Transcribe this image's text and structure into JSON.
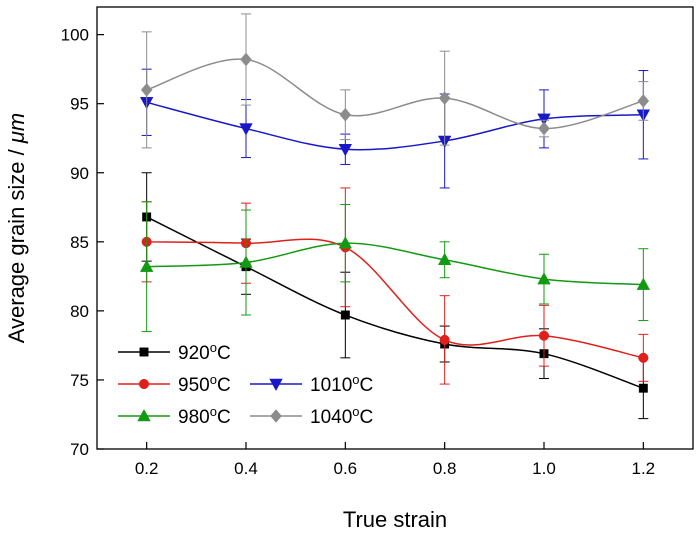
{
  "chart_data": {
    "type": "line",
    "title": "",
    "xlabel": "True strain",
    "ylabel_prefix": "Average grain size / ",
    "ylabel_unit": "μm",
    "xlim": [
      0.1,
      1.3
    ],
    "ylim": [
      70,
      102
    ],
    "xticks": [
      0.2,
      0.4,
      0.6,
      0.8,
      1.0,
      1.2
    ],
    "xtick_labels": [
      "0.2",
      "0.4",
      "0.6",
      "0.8",
      "1.0",
      "1.2"
    ],
    "yticks": [
      70,
      75,
      80,
      85,
      90,
      95,
      100
    ],
    "ytick_labels": [
      "70",
      "75",
      "80",
      "85",
      "90",
      "95",
      "100"
    ],
    "grid": false,
    "legend_position": "bottom-left",
    "series": [
      {
        "name": "920",
        "unit": "°C",
        "color": "#000000",
        "marker": "square",
        "x": [
          0.2,
          0.4,
          0.6,
          0.8,
          1.0,
          1.2
        ],
        "values": [
          86.8,
          83.2,
          79.7,
          77.6,
          76.9,
          74.4
        ],
        "error": [
          3.2,
          2.0,
          3.1,
          1.3,
          1.8,
          2.2
        ]
      },
      {
        "name": "950",
        "unit": "°C",
        "color": "#e0201b",
        "marker": "circle",
        "x": [
          0.2,
          0.4,
          0.6,
          0.8,
          1.0,
          1.2
        ],
        "values": [
          85.0,
          84.9,
          84.6,
          77.9,
          78.2,
          76.6
        ],
        "error": [
          2.9,
          2.9,
          4.3,
          3.2,
          2.2,
          1.7
        ]
      },
      {
        "name": "980",
        "unit": "°C",
        "color": "#139a13",
        "marker": "triangle-up",
        "x": [
          0.2,
          0.4,
          0.6,
          0.8,
          1.0,
          1.2
        ],
        "values": [
          83.2,
          83.5,
          84.9,
          83.7,
          82.3,
          81.9
        ],
        "error": [
          4.7,
          3.8,
          2.8,
          1.3,
          1.8,
          2.6
        ]
      },
      {
        "name": "1010",
        "unit": "°C",
        "color": "#1818c8",
        "marker": "triangle-down",
        "x": [
          0.2,
          0.4,
          0.6,
          0.8,
          1.0,
          1.2
        ],
        "values": [
          95.1,
          93.2,
          91.7,
          92.3,
          93.9,
          94.2
        ],
        "error": [
          2.4,
          2.1,
          1.1,
          3.4,
          2.1,
          3.2
        ]
      },
      {
        "name": "1040",
        "unit": "°C",
        "color": "#8c8c8c",
        "marker": "diamond",
        "x": [
          0.2,
          0.4,
          0.6,
          0.8,
          1.0,
          1.2
        ],
        "values": [
          96.0,
          98.2,
          94.2,
          95.4,
          93.2,
          95.2
        ],
        "error": [
          4.2,
          3.3,
          1.8,
          3.4,
          0.6,
          1.4
        ]
      }
    ]
  }
}
